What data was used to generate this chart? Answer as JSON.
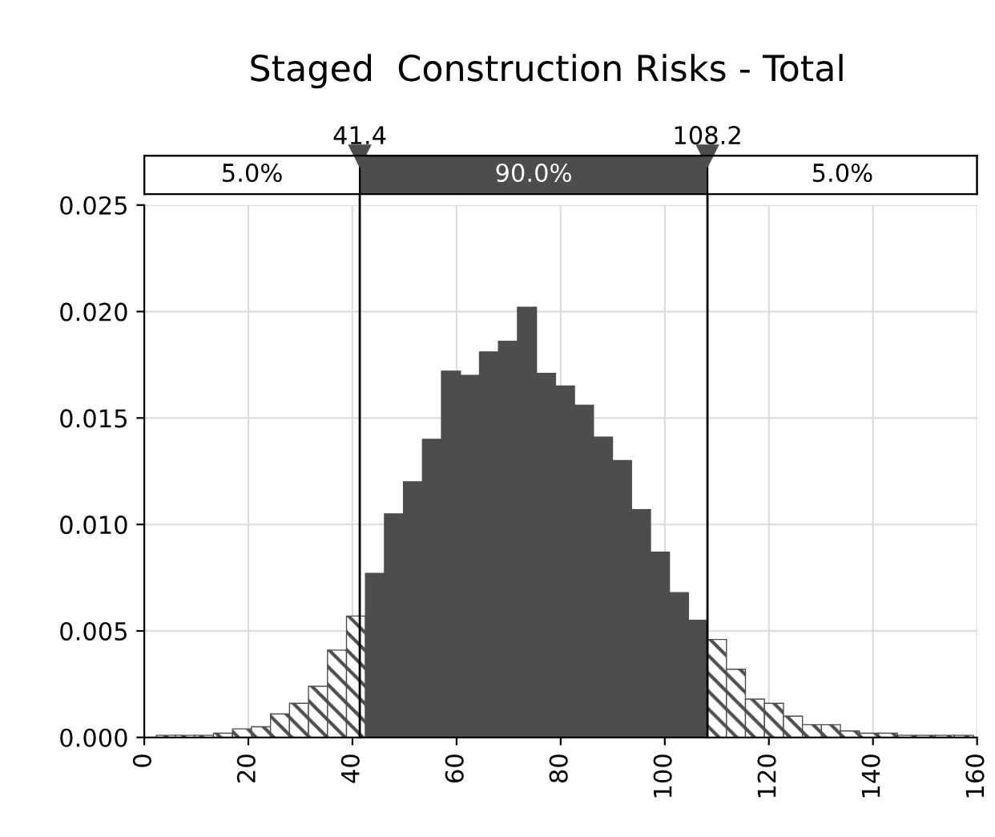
{
  "chart_data": {
    "type": "histogram",
    "title": "Staged  Construction Risks - Total",
    "bins": [
      2.35,
      6.0,
      9.65,
      13.3,
      16.95,
      20.6,
      24.25,
      27.9,
      31.55,
      35.2,
      38.85,
      42.5,
      46.15,
      49.8,
      53.45,
      57.1,
      60.75,
      64.4,
      68.05,
      71.7,
      75.35,
      79.0,
      82.65,
      86.3,
      89.95,
      93.6,
      97.25,
      100.9,
      104.55,
      108.2,
      111.85,
      115.5,
      119.15,
      122.8,
      126.45,
      130.1,
      133.75,
      137.4,
      141.05,
      144.7,
      148.35,
      152.0,
      155.65,
      159.3
    ],
    "values": [
      0.0001,
      0.0001,
      0.0001,
      0.0002,
      0.0004,
      0.0005,
      0.0011,
      0.0016,
      0.0024,
      0.0041,
      0.0057,
      0.0077,
      0.0105,
      0.012,
      0.014,
      0.0172,
      0.017,
      0.0181,
      0.0186,
      0.0202,
      0.0171,
      0.0165,
      0.0156,
      0.0141,
      0.013,
      0.0107,
      0.0087,
      0.0068,
      0.0055,
      0.0046,
      0.0032,
      0.0018,
      0.0016,
      0.001,
      0.0006,
      0.0006,
      0.0003,
      0.0002,
      0.0002,
      0.0001,
      0.0001,
      0.0001,
      0.0001
    ],
    "color": "#4d4d4d",
    "xlim": [
      0,
      160
    ],
    "xticks": [
      0,
      20,
      40,
      60,
      80,
      100,
      120,
      140,
      160
    ],
    "ylim": [
      0,
      0.025
    ],
    "yticks": [
      {
        "value": 0,
        "label": "0.000"
      },
      {
        "value": 0.005,
        "label": "0.005"
      },
      {
        "value": 0.01,
        "label": "0.010"
      },
      {
        "value": 0.015,
        "label": "0.015"
      },
      {
        "value": 0.02,
        "label": "0.020"
      },
      {
        "value": 0.025,
        "label": "0.025"
      }
    ],
    "ref_lines": [
      {
        "axis": "x",
        "value": 41.4,
        "label": "41.4"
      },
      {
        "axis": "x",
        "value": 108.2,
        "label": "108.2"
      }
    ],
    "annotations": [
      "5.0%",
      "90.0%",
      "5.0%"
    ],
    "grid": true
  }
}
